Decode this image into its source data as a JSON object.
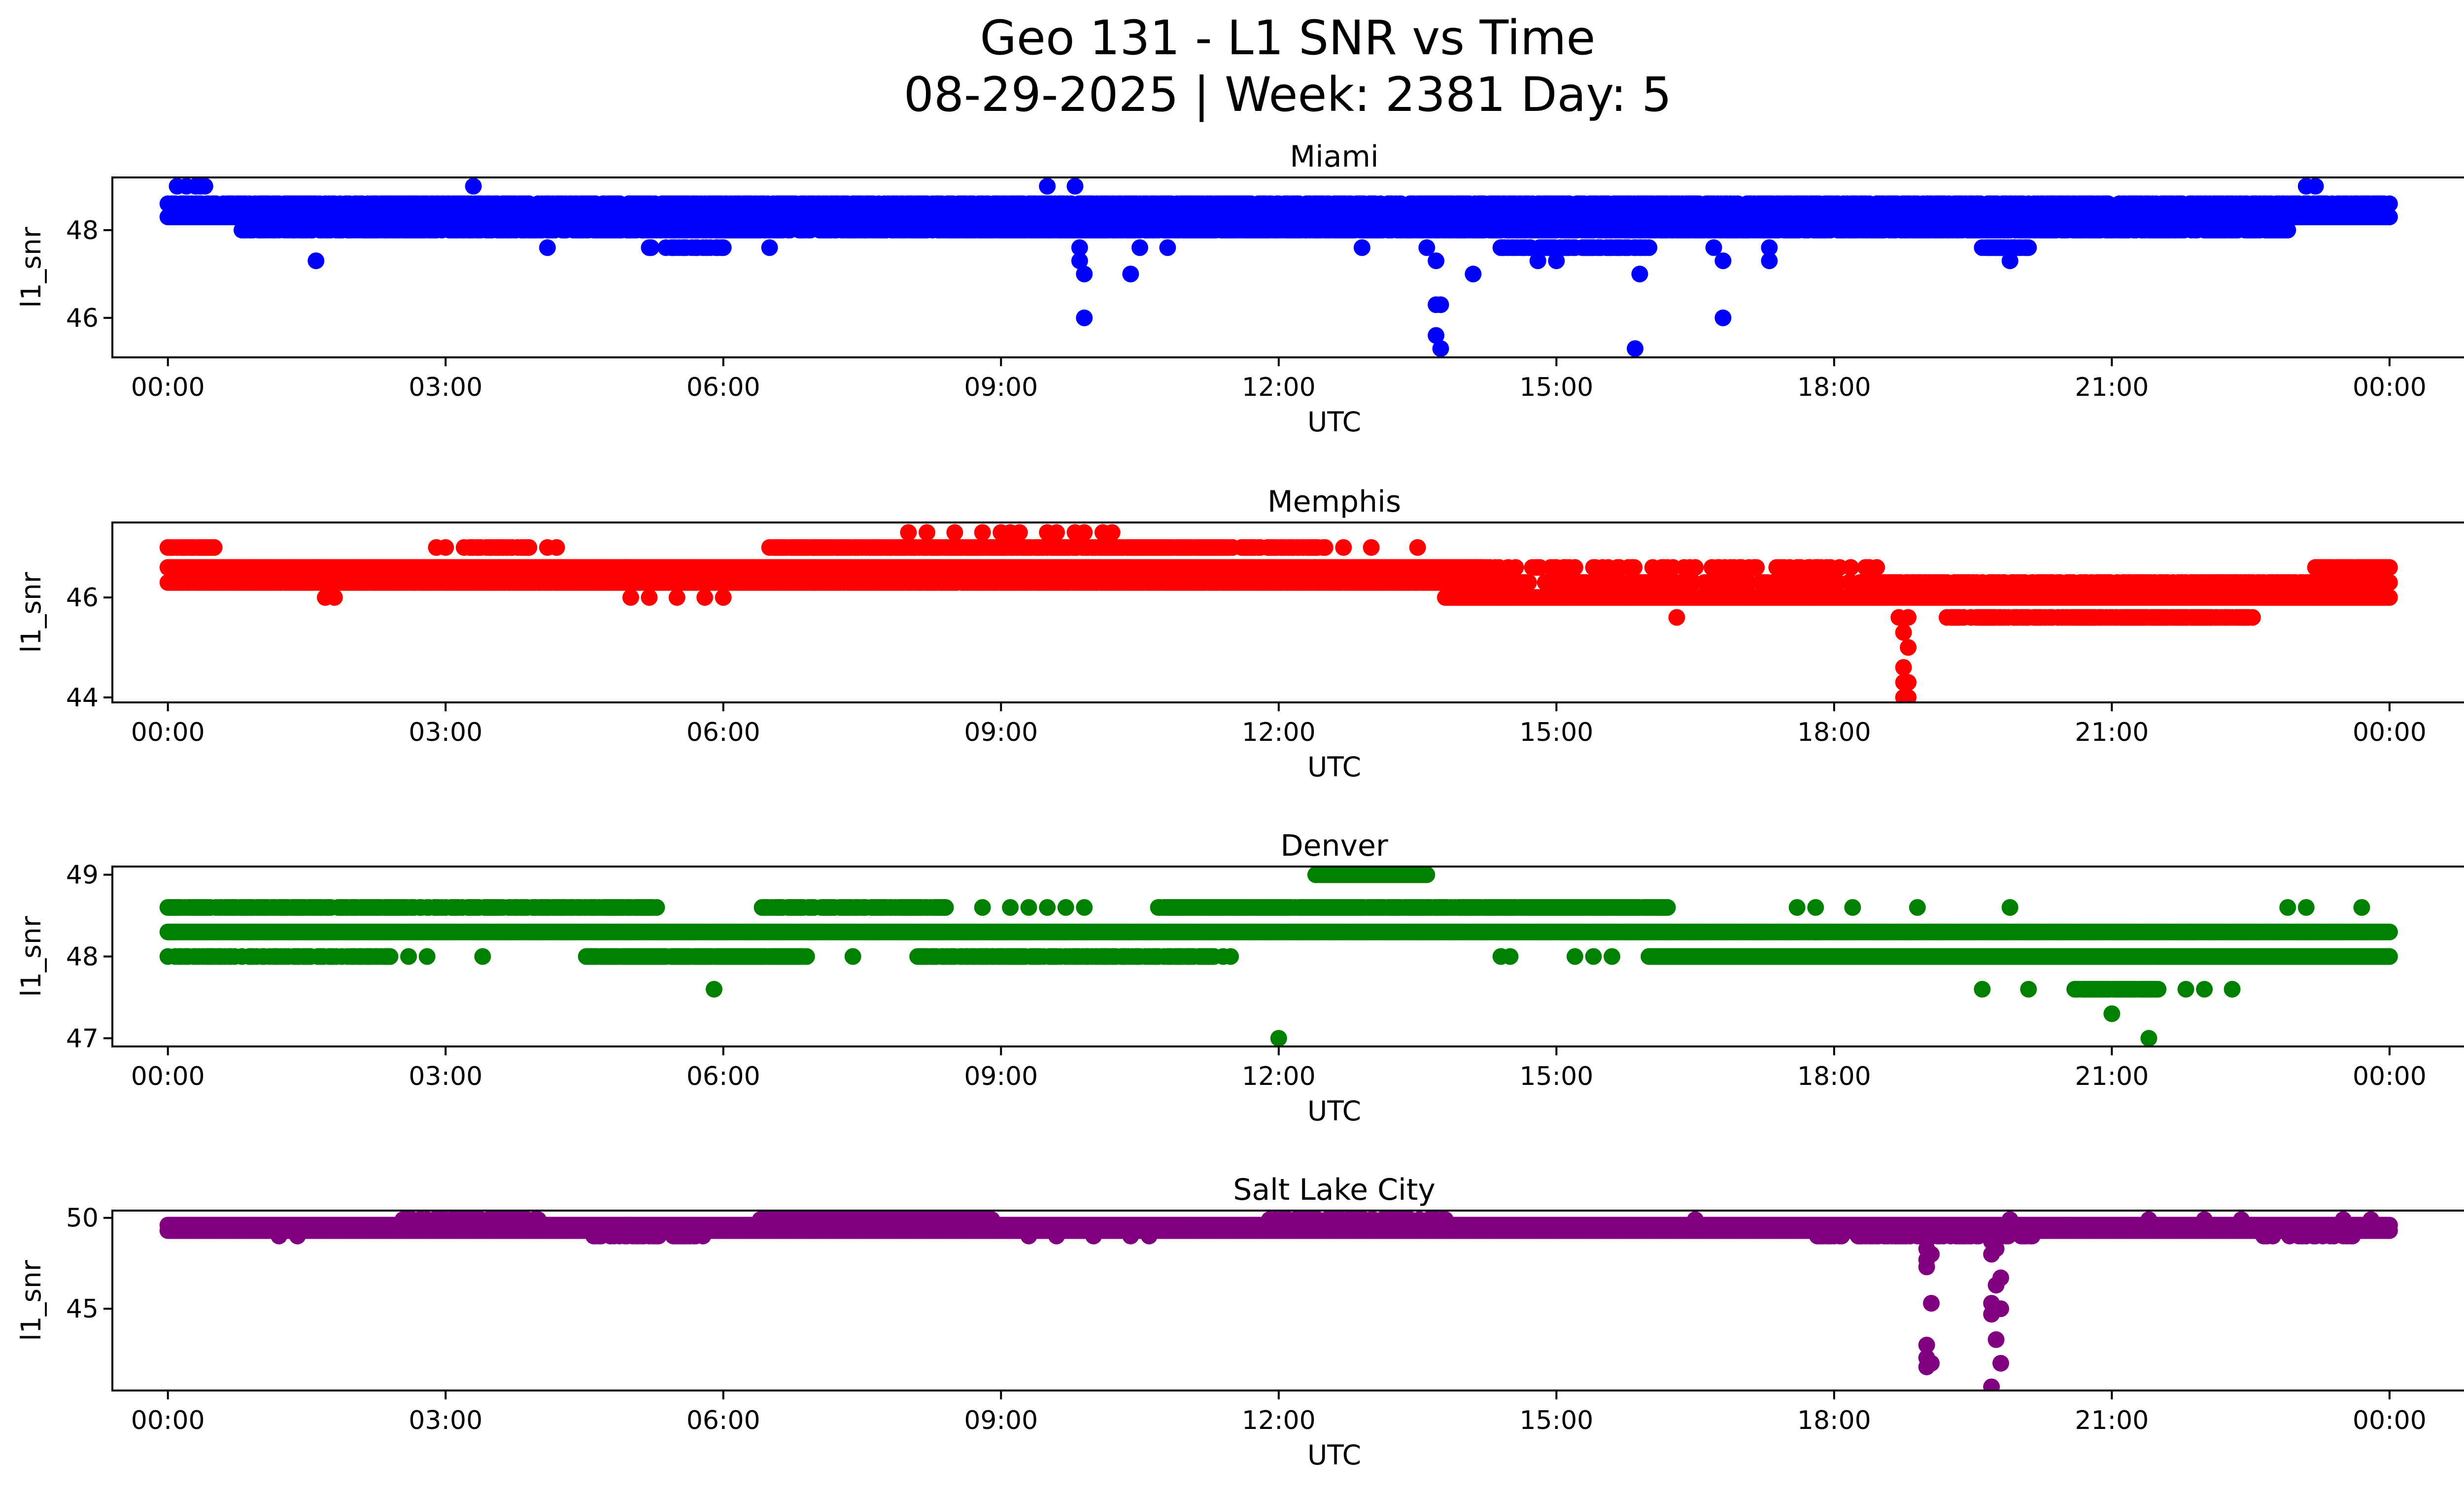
{
  "suptitle": {
    "line1": "Geo 131 - L1 SNR vs Time",
    "line2": "08-29-2025 | Week: 2381 Day: 5"
  },
  "chart_data": [
    {
      "type": "scatter",
      "title": "Miami",
      "xlabel": "UTC",
      "ylabel": "l1_snr",
      "color": "#0000ff",
      "xlim": [
        -0.6,
        25.8
      ],
      "ylim": [
        45.1,
        49.2
      ],
      "xticks": [
        "00:00",
        "03:00",
        "06:00",
        "09:00",
        "12:00",
        "15:00",
        "18:00",
        "21:00",
        "00:00"
      ],
      "yticks": [
        46,
        48
      ],
      "bands": [
        {
          "y": 48.3,
          "start": 0.0,
          "end": 24.0,
          "density": 1.0
        },
        {
          "y": 48.6,
          "start": 0.0,
          "end": 24.0,
          "density": 0.75
        },
        {
          "y": 48.0,
          "start": 0.8,
          "end": 22.9,
          "density": 0.8
        },
        {
          "y": 47.6,
          "start": 5.2,
          "end": 6.0,
          "density": 0.5
        },
        {
          "y": 47.6,
          "start": 14.4,
          "end": 16.0,
          "density": 0.7
        },
        {
          "y": 47.6,
          "start": 19.6,
          "end": 20.1,
          "density": 0.7
        }
      ],
      "points": [
        [
          0.1,
          49.0
        ],
        [
          0.2,
          49.0
        ],
        [
          0.3,
          49.0
        ],
        [
          0.35,
          49.0
        ],
        [
          0.4,
          49.0
        ],
        [
          3.3,
          49.0
        ],
        [
          9.5,
          49.0
        ],
        [
          9.8,
          49.0
        ],
        [
          23.1,
          49.0
        ],
        [
          23.2,
          49.0
        ],
        [
          1.6,
          47.3
        ],
        [
          4.1,
          47.6
        ],
        [
          6.5,
          47.6
        ],
        [
          10.5,
          47.6
        ],
        [
          10.8,
          47.6
        ],
        [
          12.9,
          47.6
        ],
        [
          9.85,
          47.6
        ],
        [
          9.85,
          47.3
        ],
        [
          9.9,
          47.0
        ],
        [
          9.9,
          46.0
        ],
        [
          10.4,
          47.0
        ],
        [
          14.1,
          47.0
        ],
        [
          15.9,
          47.0
        ],
        [
          16.8,
          46.0
        ],
        [
          13.6,
          47.6
        ],
        [
          13.7,
          47.3
        ],
        [
          13.7,
          46.3
        ],
        [
          13.75,
          46.3
        ],
        [
          13.7,
          45.6
        ],
        [
          13.75,
          45.3
        ],
        [
          15.85,
          45.3
        ],
        [
          16.7,
          47.6
        ],
        [
          16.8,
          47.3
        ],
        [
          17.3,
          47.6
        ],
        [
          17.3,
          47.3
        ],
        [
          14.8,
          47.3
        ],
        [
          15.0,
          47.3
        ],
        [
          19.9,
          47.3
        ]
      ]
    },
    {
      "type": "scatter",
      "title": "Memphis",
      "xlabel": "UTC",
      "ylabel": "l1_snr",
      "color": "#ff0000",
      "xlim": [
        -0.6,
        25.8
      ],
      "ylim": [
        43.9,
        47.5
      ],
      "xticks": [
        "00:00",
        "03:00",
        "06:00",
        "09:00",
        "12:00",
        "15:00",
        "18:00",
        "21:00",
        "00:00"
      ],
      "yticks": [
        44,
        46
      ],
      "bands": [
        {
          "y": 46.6,
          "start": 0.0,
          "end": 14.2,
          "density": 1.0
        },
        {
          "y": 46.3,
          "start": 0.0,
          "end": 14.5,
          "density": 0.95
        },
        {
          "y": 46.3,
          "start": 14.5,
          "end": 24.0,
          "density": 0.55
        },
        {
          "y": 46.0,
          "start": 13.8,
          "end": 24.0,
          "density": 1.0
        },
        {
          "y": 47.0,
          "start": 6.5,
          "end": 11.5,
          "density": 0.9
        },
        {
          "y": 47.0,
          "start": 0.0,
          "end": 0.5,
          "density": 0.9
        },
        {
          "y": 47.0,
          "start": 3.2,
          "end": 3.9,
          "density": 0.7
        },
        {
          "y": 47.0,
          "start": 11.6,
          "end": 12.5,
          "density": 0.8
        },
        {
          "y": 45.6,
          "start": 19.2,
          "end": 22.6,
          "density": 0.7
        },
        {
          "y": 46.6,
          "start": 14.0,
          "end": 18.5,
          "density": 0.25
        },
        {
          "y": 46.6,
          "start": 23.2,
          "end": 24.0,
          "density": 0.9
        }
      ],
      "points": [
        [
          8.0,
          47.3
        ],
        [
          8.2,
          47.3
        ],
        [
          8.5,
          47.3
        ],
        [
          8.8,
          47.3
        ],
        [
          9.0,
          47.3
        ],
        [
          9.1,
          47.3
        ],
        [
          9.2,
          47.3
        ],
        [
          9.5,
          47.3
        ],
        [
          9.6,
          47.3
        ],
        [
          9.8,
          47.3
        ],
        [
          9.9,
          47.3
        ],
        [
          10.1,
          47.3
        ],
        [
          10.2,
          47.3
        ],
        [
          2.9,
          47.0
        ],
        [
          3.0,
          47.0
        ],
        [
          4.1,
          47.0
        ],
        [
          4.2,
          47.0
        ],
        [
          12.7,
          47.0
        ],
        [
          13.0,
          47.0
        ],
        [
          13.5,
          47.0
        ],
        [
          1.7,
          46.0
        ],
        [
          1.8,
          46.0
        ],
        [
          5.0,
          46.0
        ],
        [
          5.2,
          46.0
        ],
        [
          5.5,
          46.0
        ],
        [
          5.8,
          46.0
        ],
        [
          6.0,
          46.0
        ],
        [
          16.3,
          45.6
        ],
        [
          18.7,
          45.6
        ],
        [
          18.8,
          45.6
        ],
        [
          18.75,
          45.3
        ],
        [
          18.8,
          45.0
        ],
        [
          18.75,
          44.6
        ],
        [
          18.8,
          44.3
        ],
        [
          18.75,
          44.0
        ],
        [
          18.8,
          44.0
        ],
        [
          18.75,
          44.3
        ]
      ]
    },
    {
      "type": "scatter",
      "title": "Denver",
      "xlabel": "UTC",
      "ylabel": "l1_snr",
      "color": "#008000",
      "xlim": [
        -0.6,
        25.8
      ],
      "ylim": [
        46.9,
        49.1
      ],
      "xticks": [
        "00:00",
        "03:00",
        "06:00",
        "09:00",
        "12:00",
        "15:00",
        "18:00",
        "21:00",
        "00:00"
      ],
      "yticks": [
        47,
        48,
        49
      ],
      "bands": [
        {
          "y": 48.3,
          "start": 0.0,
          "end": 24.0,
          "density": 1.0
        },
        {
          "y": 48.6,
          "start": 0.0,
          "end": 5.3,
          "density": 0.8
        },
        {
          "y": 48.6,
          "start": 6.4,
          "end": 8.4,
          "density": 0.8
        },
        {
          "y": 48.6,
          "start": 10.7,
          "end": 16.2,
          "density": 0.95
        },
        {
          "y": 48.0,
          "start": 0.0,
          "end": 2.4,
          "density": 0.6
        },
        {
          "y": 48.0,
          "start": 4.5,
          "end": 6.9,
          "density": 0.95
        },
        {
          "y": 48.0,
          "start": 8.1,
          "end": 11.5,
          "density": 0.7
        },
        {
          "y": 48.0,
          "start": 16.0,
          "end": 24.0,
          "density": 1.0
        },
        {
          "y": 49.0,
          "start": 12.4,
          "end": 13.6,
          "density": 1.0
        },
        {
          "y": 47.6,
          "start": 20.6,
          "end": 21.5,
          "density": 0.9
        }
      ],
      "points": [
        [
          5.9,
          47.6
        ],
        [
          12.0,
          47.0
        ],
        [
          21.4,
          47.0
        ],
        [
          21.0,
          47.3
        ],
        [
          19.6,
          47.6
        ],
        [
          20.1,
          47.6
        ],
        [
          22.0,
          47.6
        ],
        [
          22.3,
          47.6
        ],
        [
          21.8,
          47.6
        ],
        [
          8.8,
          48.6
        ],
        [
          9.1,
          48.6
        ],
        [
          9.3,
          48.6
        ],
        [
          9.5,
          48.6
        ],
        [
          9.7,
          48.6
        ],
        [
          9.9,
          48.6
        ],
        [
          17.6,
          48.6
        ],
        [
          17.8,
          48.6
        ],
        [
          18.2,
          48.6
        ],
        [
          18.9,
          48.6
        ],
        [
          19.9,
          48.6
        ],
        [
          22.9,
          48.6
        ],
        [
          23.1,
          48.6
        ],
        [
          23.7,
          48.6
        ],
        [
          14.4,
          48.0
        ],
        [
          14.5,
          48.0
        ],
        [
          15.2,
          48.0
        ],
        [
          15.4,
          48.0
        ],
        [
          15.6,
          48.0
        ],
        [
          3.4,
          48.0
        ],
        [
          7.4,
          48.0
        ],
        [
          2.6,
          48.0
        ],
        [
          2.8,
          48.0
        ],
        [
          21.5,
          48.0
        ],
        [
          21.9,
          48.0
        ],
        [
          22.2,
          48.0
        ],
        [
          22.5,
          48.0
        ]
      ]
    },
    {
      "type": "scatter",
      "title": "Salt Lake City",
      "xlabel": "UTC",
      "ylabel": "l1_snr",
      "color": "#800080",
      "xlim": [
        -0.6,
        25.8
      ],
      "ylim": [
        40.5,
        50.4
      ],
      "xticks": [
        "00:00",
        "03:00",
        "06:00",
        "09:00",
        "12:00",
        "15:00",
        "18:00",
        "21:00",
        "00:00"
      ],
      "yticks": [
        45,
        50
      ],
      "bands": [
        {
          "y": 49.3,
          "start": 0.0,
          "end": 24.0,
          "density": 1.0
        },
        {
          "y": 49.6,
          "start": 0.0,
          "end": 24.0,
          "density": 1.0
        },
        {
          "y": 49.9,
          "start": 2.5,
          "end": 4.0,
          "density": 0.6
        },
        {
          "y": 49.9,
          "start": 6.4,
          "end": 8.9,
          "density": 0.9
        },
        {
          "y": 49.9,
          "start": 11.9,
          "end": 13.8,
          "density": 0.6
        },
        {
          "y": 49.0,
          "start": 4.6,
          "end": 5.8,
          "density": 0.5
        },
        {
          "y": 49.0,
          "start": 17.8,
          "end": 20.2,
          "density": 0.5
        },
        {
          "y": 49.0,
          "start": 22.6,
          "end": 23.6,
          "density": 0.4
        }
      ],
      "points": [
        [
          1.2,
          49.0
        ],
        [
          1.4,
          49.0
        ],
        [
          9.3,
          49.0
        ],
        [
          9.6,
          49.0
        ],
        [
          10.0,
          49.0
        ],
        [
          10.4,
          49.0
        ],
        [
          10.6,
          49.0
        ],
        [
          16.5,
          49.9
        ],
        [
          19.9,
          49.9
        ],
        [
          21.4,
          49.9
        ],
        [
          22.0,
          49.9
        ],
        [
          22.4,
          49.9
        ],
        [
          23.5,
          49.9
        ],
        [
          23.8,
          49.9
        ],
        [
          19.0,
          48.3
        ],
        [
          19.05,
          48.0
        ],
        [
          19.0,
          47.7
        ],
        [
          19.0,
          47.3
        ],
        [
          19.05,
          45.3
        ],
        [
          19.0,
          43.0
        ],
        [
          19.0,
          42.3
        ],
        [
          19.05,
          42.0
        ],
        [
          19.0,
          41.8
        ],
        [
          19.7,
          48.7
        ],
        [
          19.75,
          48.3
        ],
        [
          19.7,
          48.0
        ],
        [
          19.8,
          46.7
        ],
        [
          19.75,
          46.3
        ],
        [
          19.7,
          45.3
        ],
        [
          19.8,
          45.0
        ],
        [
          19.7,
          44.7
        ],
        [
          19.75,
          43.3
        ],
        [
          19.8,
          42.0
        ],
        [
          19.7,
          40.7
        ]
      ]
    }
  ]
}
